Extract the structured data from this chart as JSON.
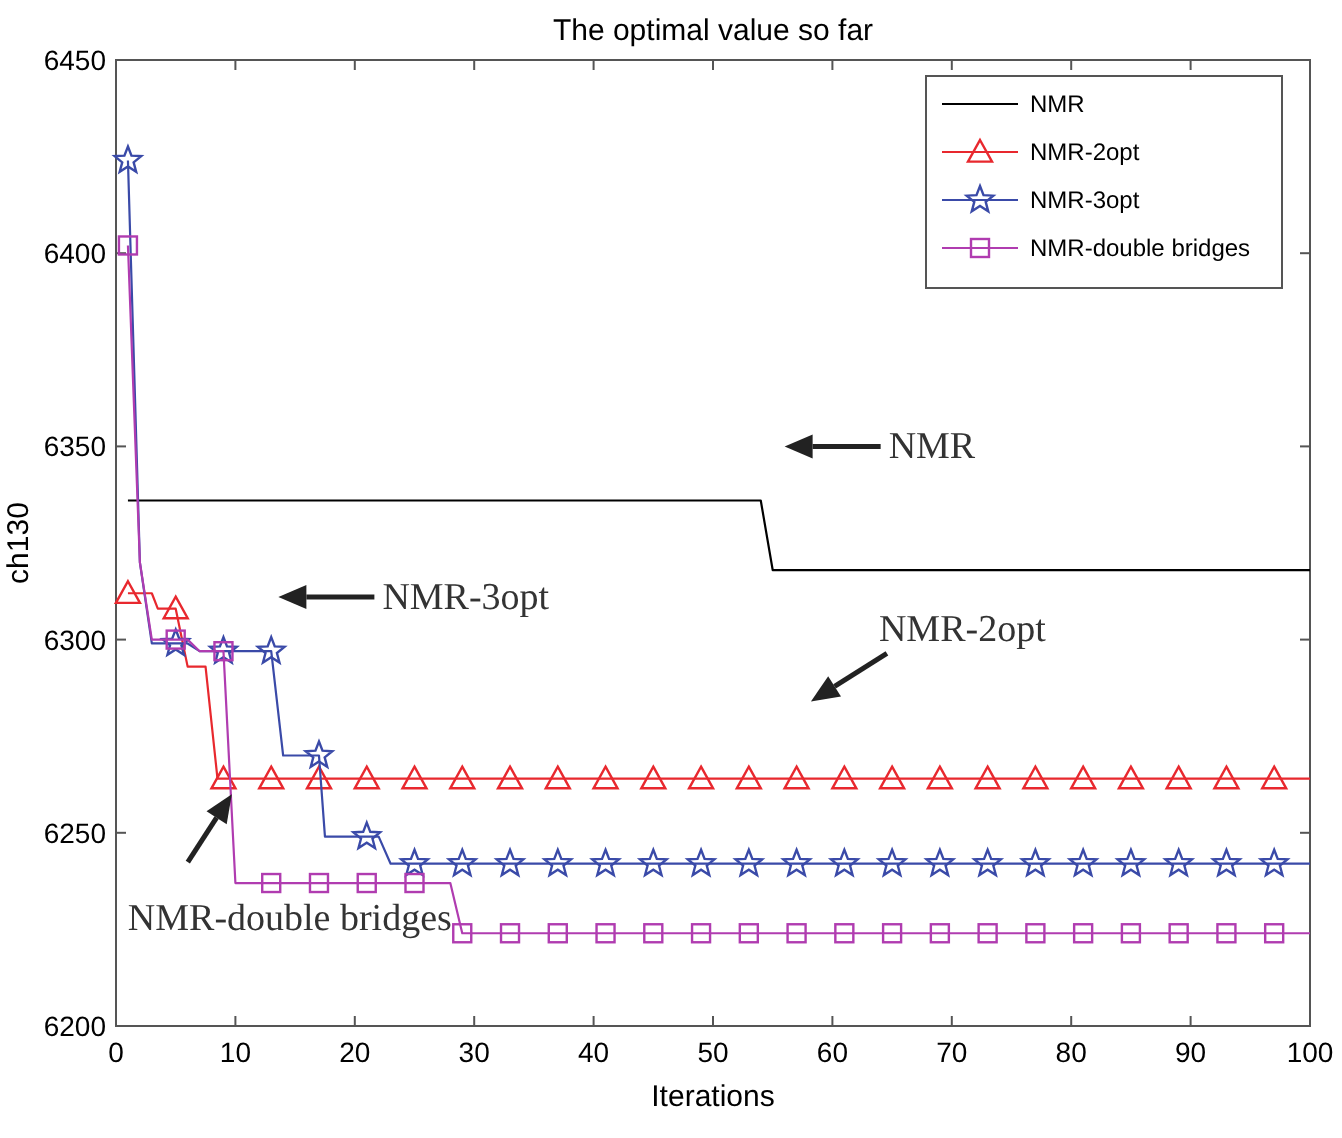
{
  "chart_data": {
    "type": "line",
    "title": "The optimal value so far",
    "xlabel": "Iterations",
    "ylabel": "ch130",
    "xlim": [
      0,
      100
    ],
    "xticks": [
      0,
      10,
      20,
      30,
      40,
      50,
      60,
      70,
      80,
      90,
      100
    ],
    "ylim": [
      6200,
      6450
    ],
    "yticks": [
      6200,
      6250,
      6300,
      6350,
      6400,
      6450
    ],
    "legend": "top right",
    "line_style": "solid",
    "series": [
      {
        "name": "NMR",
        "color": "#000000",
        "marker": "none",
        "x": [
          1,
          54,
          55,
          100
        ],
        "values": [
          6336,
          6336,
          6318,
          6318
        ]
      },
      {
        "type": "line",
        "color": "#e8282e",
        "marker": "none",
        "x": [
          1,
          3,
          3.5,
          5,
          6,
          7.5,
          8.5,
          100
        ],
        "values": [
          6312,
          6312,
          6308,
          6308,
          6293,
          6293,
          6264,
          6264
        ]
      },
      {
        "type": "scatter",
        "name": "NMR-2opt",
        "color": "#e8282e",
        "marker": "triangle",
        "x": [
          1,
          5,
          9,
          13,
          17,
          21,
          25,
          29,
          33,
          37,
          41,
          45,
          49,
          53,
          57,
          61,
          65,
          69,
          73,
          77,
          81,
          85,
          89,
          93,
          97
        ],
        "values": [
          6312,
          6308,
          6264,
          6264,
          6264,
          6264,
          6264,
          6264,
          6264,
          6264,
          6264,
          6264,
          6264,
          6264,
          6264,
          6264,
          6264,
          6264,
          6264,
          6264,
          6264,
          6264,
          6264,
          6264,
          6264
        ]
      },
      {
        "type": "line",
        "color": "#3a4aa8",
        "marker": "none",
        "x": [
          1,
          2,
          3,
          6,
          7,
          13,
          14,
          17,
          17.5,
          22,
          23,
          100
        ],
        "values": [
          6424,
          6320,
          6299,
          6299,
          6297,
          6297,
          6270,
          6270,
          6249,
          6249,
          6242,
          6242
        ]
      },
      {
        "type": "scatter",
        "name": "NMR-3opt",
        "color": "#3a4aa8",
        "marker": "star",
        "x": [
          1,
          5,
          9,
          13,
          17,
          21,
          25,
          29,
          33,
          37,
          41,
          45,
          49,
          53,
          57,
          61,
          65,
          69,
          73,
          77,
          81,
          85,
          89,
          93,
          97
        ],
        "values": [
          6424,
          6299,
          6297,
          6297,
          6270,
          6249,
          6242,
          6242,
          6242,
          6242,
          6242,
          6242,
          6242,
          6242,
          6242,
          6242,
          6242,
          6242,
          6242,
          6242,
          6242,
          6242,
          6242,
          6242,
          6242
        ]
      },
      {
        "type": "line",
        "color": "#b03cb0",
        "marker": "none",
        "x": [
          1,
          2,
          3,
          6,
          7,
          9,
          10,
          28,
          29,
          100
        ],
        "values": [
          6402,
          6320,
          6300,
          6300,
          6297,
          6297,
          6237,
          6237,
          6224,
          6224
        ]
      },
      {
        "type": "scatter",
        "name": "NMR-double bridges",
        "color": "#b03cb0",
        "marker": "square",
        "x": [
          1,
          5,
          9,
          13,
          17,
          21,
          25,
          29,
          33,
          37,
          41,
          45,
          49,
          53,
          57,
          61,
          65,
          69,
          73,
          77,
          81,
          85,
          89,
          93,
          97
        ],
        "values": [
          6402,
          6300,
          6297,
          6237,
          6237,
          6237,
          6237,
          6224,
          6224,
          6224,
          6224,
          6224,
          6224,
          6224,
          6224,
          6224,
          6224,
          6224,
          6224,
          6224,
          6224,
          6224,
          6224,
          6224,
          6224
        ]
      }
    ],
    "annotations": [
      "NMR",
      "NMR-3opt",
      "NMR-2opt",
      "NMR-double bridges"
    ]
  }
}
